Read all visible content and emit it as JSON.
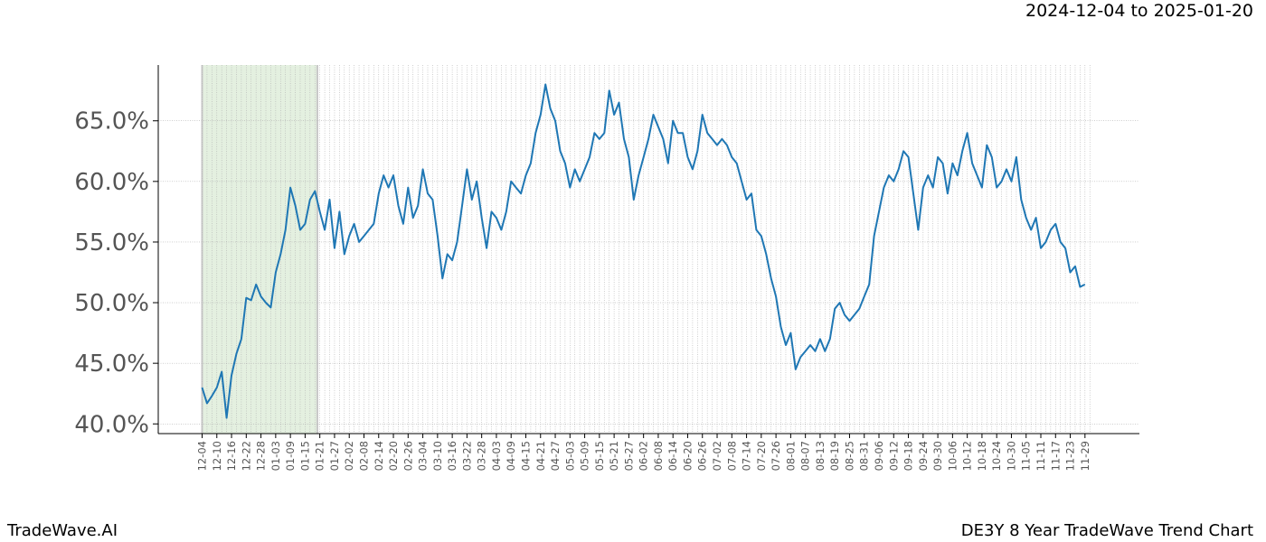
{
  "header": {
    "date_range": "2024-12-04 to 2025-01-20"
  },
  "footer": {
    "brand": "TradeWave.AI",
    "title": "DE3Y 8 Year TradeWave Trend Chart"
  },
  "colors": {
    "line": "#1f77b4",
    "highlight": "#d9ead3",
    "highlight_edge": "#c8c8c8",
    "grid": "#b0b0b0"
  },
  "chart_data": {
    "type": "line",
    "title": "DE3Y 8 Year TradeWave Trend Chart",
    "x_start": "2024-12-04",
    "x_end": "2025-12-02",
    "ylim": [
      39.2,
      69.6
    ],
    "y_ticks": [
      40,
      45,
      50,
      55,
      60,
      65
    ],
    "y_tick_labels": [
      "40.0%",
      "45.0%",
      "50.0%",
      "55.0%",
      "60.0%",
      "65.0%"
    ],
    "x_tick_labels": [
      "12-04",
      "12-10",
      "12-16",
      "12-22",
      "12-28",
      "01-03",
      "01-09",
      "01-15",
      "01-21",
      "01-27",
      "02-02",
      "02-08",
      "02-14",
      "02-20",
      "02-26",
      "03-04",
      "03-10",
      "03-16",
      "03-22",
      "03-28",
      "04-03",
      "04-09",
      "04-15",
      "04-21",
      "04-27",
      "05-03",
      "05-09",
      "05-15",
      "05-21",
      "05-27",
      "06-02",
      "06-08",
      "06-14",
      "06-20",
      "06-26",
      "07-02",
      "07-08",
      "07-14",
      "07-20",
      "07-26",
      "08-01",
      "08-07",
      "08-13",
      "08-19",
      "08-25",
      "08-31",
      "09-06",
      "09-12",
      "09-18",
      "09-24",
      "09-30",
      "10-06",
      "10-12",
      "10-18",
      "10-24",
      "10-30",
      "11-05",
      "11-11",
      "11-17",
      "11-23",
      "11-29"
    ],
    "highlight": {
      "start": "2024-12-04",
      "end": "2025-01-20"
    },
    "grid": true,
    "series": [
      {
        "points": [
          [
            "2024-12-04",
            43.0
          ],
          [
            "2024-12-06",
            41.7
          ],
          [
            "2024-12-08",
            42.3
          ],
          [
            "2024-12-10",
            43.0
          ],
          [
            "2024-12-12",
            44.3
          ],
          [
            "2024-12-14",
            40.5
          ],
          [
            "2024-12-16",
            44.0
          ],
          [
            "2024-12-18",
            45.8
          ],
          [
            "2024-12-20",
            47.0
          ],
          [
            "2024-12-22",
            50.4
          ],
          [
            "2024-12-24",
            50.2
          ],
          [
            "2024-12-26",
            51.5
          ],
          [
            "2024-12-28",
            50.5
          ],
          [
            "2024-12-30",
            50.0
          ],
          [
            "2025-01-01",
            49.6
          ],
          [
            "2025-01-03",
            52.5
          ],
          [
            "2025-01-05",
            54.0
          ],
          [
            "2025-01-07",
            56.0
          ],
          [
            "2025-01-09",
            59.5
          ],
          [
            "2025-01-11",
            58.0
          ],
          [
            "2025-01-13",
            56.0
          ],
          [
            "2025-01-15",
            56.5
          ],
          [
            "2025-01-17",
            58.5
          ],
          [
            "2025-01-19",
            59.2
          ],
          [
            "2025-01-21",
            57.5
          ],
          [
            "2025-01-23",
            56.0
          ],
          [
            "2025-01-25",
            58.5
          ],
          [
            "2025-01-27",
            54.5
          ],
          [
            "2025-01-29",
            57.5
          ],
          [
            "2025-01-31",
            54.0
          ],
          [
            "2025-02-02",
            55.5
          ],
          [
            "2025-02-04",
            56.5
          ],
          [
            "2025-02-06",
            55.0
          ],
          [
            "2025-02-08",
            55.5
          ],
          [
            "2025-02-10",
            56.0
          ],
          [
            "2025-02-12",
            56.5
          ],
          [
            "2025-02-14",
            59.0
          ],
          [
            "2025-02-16",
            60.5
          ],
          [
            "2025-02-18",
            59.5
          ],
          [
            "2025-02-20",
            60.5
          ],
          [
            "2025-02-22",
            58.0
          ],
          [
            "2025-02-24",
            56.5
          ],
          [
            "2025-02-26",
            59.5
          ],
          [
            "2025-02-28",
            57.0
          ],
          [
            "2025-03-02",
            58.0
          ],
          [
            "2025-03-04",
            61.0
          ],
          [
            "2025-03-06",
            59.0
          ],
          [
            "2025-03-08",
            58.5
          ],
          [
            "2025-03-10",
            55.5
          ],
          [
            "2025-03-12",
            52.0
          ],
          [
            "2025-03-14",
            54.0
          ],
          [
            "2025-03-16",
            53.5
          ],
          [
            "2025-03-18",
            55.0
          ],
          [
            "2025-03-20",
            58.0
          ],
          [
            "2025-03-22",
            61.0
          ],
          [
            "2025-03-24",
            58.5
          ],
          [
            "2025-03-26",
            60.0
          ],
          [
            "2025-03-28",
            57.0
          ],
          [
            "2025-03-30",
            54.5
          ],
          [
            "2025-04-01",
            57.5
          ],
          [
            "2025-04-03",
            57.0
          ],
          [
            "2025-04-05",
            56.0
          ],
          [
            "2025-04-07",
            57.5
          ],
          [
            "2025-04-09",
            60.0
          ],
          [
            "2025-04-11",
            59.5
          ],
          [
            "2025-04-13",
            59.0
          ],
          [
            "2025-04-15",
            60.5
          ],
          [
            "2025-04-17",
            61.5
          ],
          [
            "2025-04-19",
            64.0
          ],
          [
            "2025-04-21",
            65.5
          ],
          [
            "2025-04-23",
            68.0
          ],
          [
            "2025-04-25",
            66.0
          ],
          [
            "2025-04-27",
            65.0
          ],
          [
            "2025-04-29",
            62.5
          ],
          [
            "2025-05-01",
            61.5
          ],
          [
            "2025-05-03",
            59.5
          ],
          [
            "2025-05-05",
            61.0
          ],
          [
            "2025-05-07",
            60.0
          ],
          [
            "2025-05-09",
            61.0
          ],
          [
            "2025-05-11",
            62.0
          ],
          [
            "2025-05-13",
            64.0
          ],
          [
            "2025-05-15",
            63.5
          ],
          [
            "2025-05-17",
            64.0
          ],
          [
            "2025-05-19",
            67.5
          ],
          [
            "2025-05-21",
            65.5
          ],
          [
            "2025-05-23",
            66.5
          ],
          [
            "2025-05-25",
            63.5
          ],
          [
            "2025-05-27",
            62.0
          ],
          [
            "2025-05-29",
            58.5
          ],
          [
            "2025-05-31",
            60.5
          ],
          [
            "2025-06-02",
            62.0
          ],
          [
            "2025-06-04",
            63.5
          ],
          [
            "2025-06-06",
            65.5
          ],
          [
            "2025-06-08",
            64.5
          ],
          [
            "2025-06-10",
            63.5
          ],
          [
            "2025-06-12",
            61.5
          ],
          [
            "2025-06-14",
            65.0
          ],
          [
            "2025-06-16",
            64.0
          ],
          [
            "2025-06-18",
            64.0
          ],
          [
            "2025-06-20",
            62.0
          ],
          [
            "2025-06-22",
            61.0
          ],
          [
            "2025-06-24",
            62.5
          ],
          [
            "2025-06-26",
            65.5
          ],
          [
            "2025-06-28",
            64.0
          ],
          [
            "2025-06-30",
            63.5
          ],
          [
            "2025-07-02",
            63.0
          ],
          [
            "2025-07-04",
            63.5
          ],
          [
            "2025-07-06",
            63.0
          ],
          [
            "2025-07-08",
            62.0
          ],
          [
            "2025-07-10",
            61.5
          ],
          [
            "2025-07-12",
            60.0
          ],
          [
            "2025-07-14",
            58.5
          ],
          [
            "2025-07-16",
            59.0
          ],
          [
            "2025-07-18",
            56.0
          ],
          [
            "2025-07-20",
            55.5
          ],
          [
            "2025-07-22",
            54.0
          ],
          [
            "2025-07-24",
            52.0
          ],
          [
            "2025-07-26",
            50.5
          ],
          [
            "2025-07-28",
            48.0
          ],
          [
            "2025-07-30",
            46.5
          ],
          [
            "2025-08-01",
            47.5
          ],
          [
            "2025-08-03",
            44.5
          ],
          [
            "2025-08-05",
            45.5
          ],
          [
            "2025-08-07",
            46.0
          ],
          [
            "2025-08-09",
            46.5
          ],
          [
            "2025-08-11",
            46.0
          ],
          [
            "2025-08-13",
            47.0
          ],
          [
            "2025-08-15",
            46.0
          ],
          [
            "2025-08-17",
            47.0
          ],
          [
            "2025-08-19",
            49.5
          ],
          [
            "2025-08-21",
            50.0
          ],
          [
            "2025-08-23",
            49.0
          ],
          [
            "2025-08-25",
            48.5
          ],
          [
            "2025-08-27",
            49.0
          ],
          [
            "2025-08-29",
            49.5
          ],
          [
            "2025-08-31",
            50.5
          ],
          [
            "2025-09-02",
            51.5
          ],
          [
            "2025-09-04",
            55.5
          ],
          [
            "2025-09-06",
            57.5
          ],
          [
            "2025-09-08",
            59.5
          ],
          [
            "2025-09-10",
            60.5
          ],
          [
            "2025-09-12",
            60.0
          ],
          [
            "2025-09-14",
            61.0
          ],
          [
            "2025-09-16",
            62.5
          ],
          [
            "2025-09-18",
            62.0
          ],
          [
            "2025-09-20",
            59.0
          ],
          [
            "2025-09-22",
            56.0
          ],
          [
            "2025-09-24",
            59.5
          ],
          [
            "2025-09-26",
            60.5
          ],
          [
            "2025-09-28",
            59.5
          ],
          [
            "2025-09-30",
            62.0
          ],
          [
            "2025-10-02",
            61.5
          ],
          [
            "2025-10-04",
            59.0
          ],
          [
            "2025-10-06",
            61.5
          ],
          [
            "2025-10-08",
            60.5
          ],
          [
            "2025-10-10",
            62.5
          ],
          [
            "2025-10-12",
            64.0
          ],
          [
            "2025-10-14",
            61.5
          ],
          [
            "2025-10-16",
            60.5
          ],
          [
            "2025-10-18",
            59.5
          ],
          [
            "2025-10-20",
            63.0
          ],
          [
            "2025-10-22",
            62.0
          ],
          [
            "2025-10-24",
            59.5
          ],
          [
            "2025-10-26",
            60.0
          ],
          [
            "2025-10-28",
            61.0
          ],
          [
            "2025-10-30",
            60.0
          ],
          [
            "2025-11-01",
            62.0
          ],
          [
            "2025-11-03",
            58.5
          ],
          [
            "2025-11-05",
            57.0
          ],
          [
            "2025-11-07",
            56.0
          ],
          [
            "2025-11-09",
            57.0
          ],
          [
            "2025-11-11",
            54.5
          ],
          [
            "2025-11-13",
            55.0
          ],
          [
            "2025-11-15",
            56.0
          ],
          [
            "2025-11-17",
            56.5
          ],
          [
            "2025-11-19",
            55.0
          ],
          [
            "2025-11-21",
            54.5
          ],
          [
            "2025-11-23",
            52.5
          ],
          [
            "2025-11-25",
            53.0
          ],
          [
            "2025-11-27",
            51.3
          ],
          [
            "2025-11-29",
            51.5
          ]
        ]
      }
    ]
  }
}
